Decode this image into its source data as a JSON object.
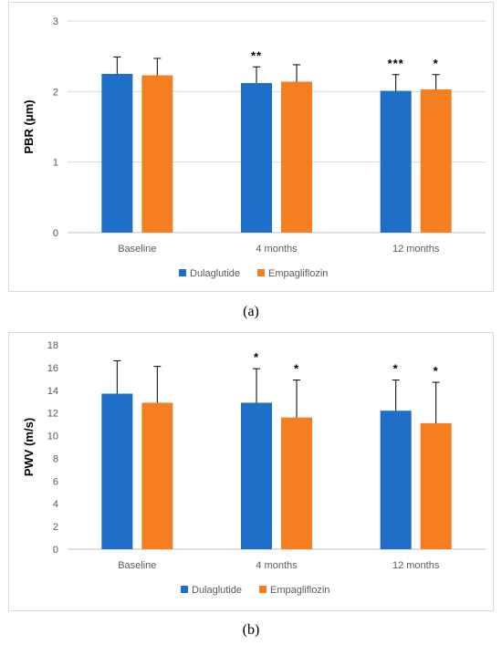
{
  "chart_data": [
    {
      "type": "bar",
      "title": "",
      "xlabel": "",
      "ylabel": "PBR (μm)",
      "ylim": [
        0,
        3
      ],
      "yticks": [
        0,
        1,
        2,
        3
      ],
      "grid": true,
      "legend_position": "bottom",
      "categories": [
        "Baseline",
        "4 months",
        "12 months"
      ],
      "series": [
        {
          "name": "Dulaglutide",
          "color": "#1f6fc8",
          "values": [
            2.25,
            2.12,
            2.01
          ],
          "error": [
            0.24,
            0.23,
            0.23
          ],
          "annotations": [
            "",
            "**",
            "***"
          ]
        },
        {
          "name": "Empagliflozin",
          "color": "#f57f20",
          "values": [
            2.23,
            2.14,
            2.03
          ],
          "error": [
            0.24,
            0.24,
            0.21
          ],
          "annotations": [
            "",
            "",
            "*"
          ]
        }
      ]
    },
    {
      "type": "bar",
      "title": "",
      "xlabel": "",
      "ylabel": "PWV (m/s)",
      "ylim": [
        0,
        18
      ],
      "yticks": [
        0,
        2,
        4,
        6,
        8,
        10,
        12,
        14,
        16,
        18
      ],
      "grid": false,
      "legend_position": "bottom",
      "categories": [
        "Baseline",
        "4 months",
        "12 months"
      ],
      "series": [
        {
          "name": "Dulaglutide",
          "color": "#1f6fc8",
          "values": [
            13.7,
            12.9,
            12.2
          ],
          "error": [
            2.9,
            3.0,
            2.7
          ],
          "annotations": [
            "",
            "*",
            "*"
          ]
        },
        {
          "name": "Empagliflozin",
          "color": "#f57f20",
          "values": [
            12.9,
            11.6,
            11.1
          ],
          "error": [
            3.2,
            3.3,
            3.6
          ],
          "annotations": [
            "",
            "*",
            "*"
          ]
        }
      ]
    }
  ],
  "captions": {
    "a": "(a)",
    "b": "(b)"
  }
}
